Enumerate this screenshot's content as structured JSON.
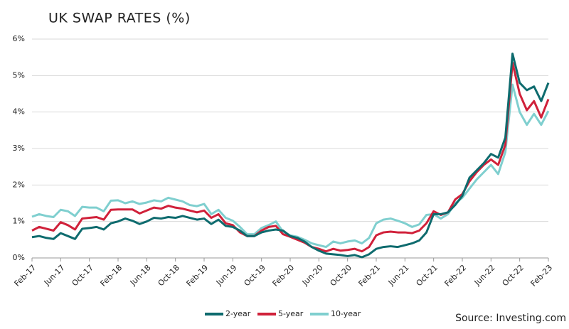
{
  "chart_data": {
    "type": "line",
    "title": "UK SWAP RATES (%)",
    "source": "Source: Investing.com",
    "categories": [
      "Feb-17",
      null,
      null,
      null,
      "Jun-17",
      null,
      null,
      null,
      "Oct-17",
      null,
      null,
      null,
      "Feb-18",
      null,
      null,
      null,
      "Jun-18",
      null,
      null,
      null,
      "Oct-18",
      null,
      null,
      null,
      "Feb-19",
      null,
      null,
      null,
      "Jun-19",
      null,
      null,
      null,
      "Oct-19",
      null,
      null,
      null,
      "Feb-20",
      null,
      null,
      null,
      "Jun-20",
      null,
      null,
      null,
      "Oct-20",
      null,
      null,
      null,
      "Feb-21",
      null,
      null,
      null,
      "Jun-21",
      null,
      null,
      null,
      "Oct-21",
      null,
      null,
      null,
      "Feb-22",
      null,
      null,
      null,
      "Jun-22",
      null,
      null,
      null,
      "Oct-22",
      null,
      null,
      null,
      "Feb-23"
    ],
    "series": [
      {
        "name": "2-year",
        "color": "#0e6b6e",
        "values": [
          0.57,
          0.6,
          0.55,
          0.52,
          0.68,
          0.6,
          0.52,
          0.8,
          0.82,
          0.85,
          0.78,
          0.95,
          1.0,
          1.08,
          1.02,
          0.93,
          1.0,
          1.1,
          1.08,
          1.12,
          1.1,
          1.15,
          1.1,
          1.05,
          1.08,
          0.93,
          1.05,
          0.88,
          0.85,
          0.75,
          0.6,
          0.6,
          0.7,
          0.75,
          0.78,
          0.75,
          0.6,
          0.55,
          0.45,
          0.3,
          0.2,
          0.12,
          0.1,
          0.08,
          0.05,
          0.08,
          0.02,
          0.1,
          0.25,
          0.3,
          0.32,
          0.3,
          0.35,
          0.4,
          0.48,
          0.7,
          1.2,
          1.2,
          1.25,
          1.45,
          1.7,
          2.2,
          2.4,
          2.6,
          2.85,
          2.75,
          3.3,
          5.6,
          4.8,
          4.6,
          4.7,
          4.3,
          4.8
        ]
      },
      {
        "name": "5-year",
        "color": "#d0213a",
        "values": [
          0.75,
          0.85,
          0.8,
          0.75,
          0.98,
          0.9,
          0.78,
          1.08,
          1.1,
          1.12,
          1.05,
          1.32,
          1.33,
          1.33,
          1.33,
          1.22,
          1.3,
          1.38,
          1.35,
          1.43,
          1.38,
          1.35,
          1.3,
          1.25,
          1.3,
          1.1,
          1.2,
          0.95,
          0.9,
          0.7,
          0.6,
          0.6,
          0.75,
          0.85,
          0.88,
          0.65,
          0.58,
          0.5,
          0.42,
          0.3,
          0.25,
          0.18,
          0.25,
          0.2,
          0.22,
          0.25,
          0.18,
          0.3,
          0.62,
          0.7,
          0.72,
          0.7,
          0.7,
          0.68,
          0.75,
          0.95,
          1.28,
          1.18,
          1.25,
          1.6,
          1.75,
          2.1,
          2.35,
          2.55,
          2.7,
          2.55,
          3.1,
          5.35,
          4.5,
          4.05,
          4.3,
          3.85,
          4.35
        ]
      },
      {
        "name": "10-year",
        "color": "#7fcfcf",
        "values": [
          1.13,
          1.2,
          1.15,
          1.12,
          1.32,
          1.28,
          1.15,
          1.4,
          1.38,
          1.38,
          1.28,
          1.57,
          1.58,
          1.5,
          1.55,
          1.48,
          1.52,
          1.58,
          1.55,
          1.65,
          1.6,
          1.55,
          1.45,
          1.42,
          1.48,
          1.2,
          1.32,
          1.1,
          1.02,
          0.85,
          0.65,
          0.65,
          0.82,
          0.9,
          1.0,
          0.72,
          0.62,
          0.58,
          0.5,
          0.4,
          0.35,
          0.3,
          0.45,
          0.4,
          0.45,
          0.48,
          0.4,
          0.55,
          0.95,
          1.05,
          1.08,
          1.02,
          0.95,
          0.85,
          0.92,
          1.18,
          1.2,
          1.08,
          1.2,
          1.5,
          1.65,
          1.9,
          2.15,
          2.35,
          2.55,
          2.3,
          2.9,
          4.75,
          4.0,
          3.65,
          3.95,
          3.65,
          4.03
        ]
      }
    ],
    "ylim": [
      0,
      6
    ],
    "yticks": [
      {
        "value": 0,
        "label": "0%"
      },
      {
        "value": 1,
        "label": "1%"
      },
      {
        "value": 2,
        "label": "2%"
      },
      {
        "value": 3,
        "label": "3%"
      },
      {
        "value": 4,
        "label": "4%"
      },
      {
        "value": 5,
        "label": "5%"
      },
      {
        "value": 6,
        "label": "6%"
      }
    ],
    "grid": true
  }
}
